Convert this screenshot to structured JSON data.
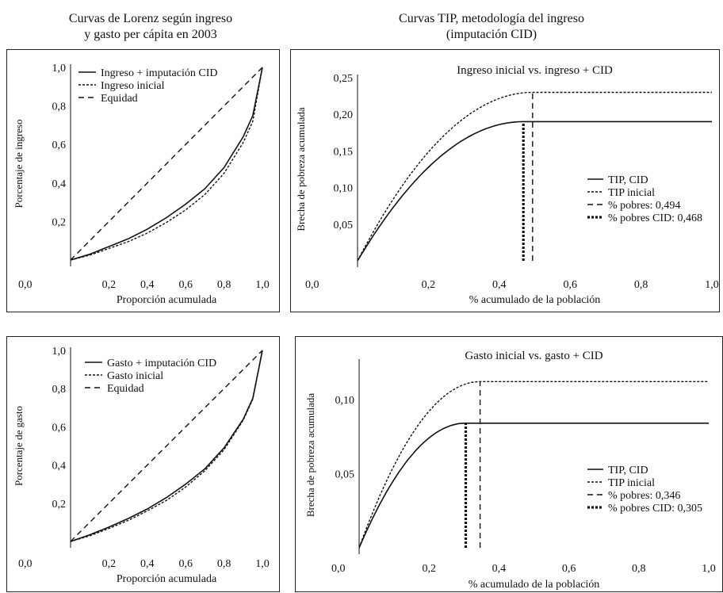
{
  "headers": {
    "left": [
      "Curvas de Lorenz según ingreso",
      "y gasto per cápita en 2003"
    ],
    "right": [
      "Curvas TIP, metodología del ingreso",
      "(imputación CID)"
    ]
  },
  "chart_data": [
    {
      "type": "line",
      "title": "",
      "xlabel": "Proporción acumulada",
      "ylabel": "Porcentaje de ingreso",
      "xlim": [
        0,
        1
      ],
      "ylim": [
        0,
        1
      ],
      "x_ticks": [
        "0,2",
        "0,4",
        "0,6",
        "0,8",
        "1,0"
      ],
      "y_ticks": [
        "0,2",
        "0,4",
        "0,6",
        "0,8",
        "1,0"
      ],
      "origin_label": "0,0",
      "legend_position": "top-left",
      "series": [
        {
          "name": "Ingreso + imputación CID",
          "style": "solid",
          "x": [
            0,
            0.1,
            0.2,
            0.3,
            0.4,
            0.5,
            0.6,
            0.7,
            0.8,
            0.9,
            0.95,
            1.0
          ],
          "y": [
            0,
            0.03,
            0.07,
            0.11,
            0.16,
            0.22,
            0.29,
            0.37,
            0.48,
            0.64,
            0.75,
            1.0
          ]
        },
        {
          "name": "Ingreso inicial",
          "style": "dotted",
          "x": [
            0,
            0.1,
            0.2,
            0.3,
            0.4,
            0.5,
            0.6,
            0.7,
            0.8,
            0.9,
            0.95,
            1.0
          ],
          "y": [
            0,
            0.025,
            0.06,
            0.095,
            0.14,
            0.195,
            0.26,
            0.34,
            0.45,
            0.61,
            0.72,
            1.0
          ]
        },
        {
          "name": "Equidad",
          "style": "dashed",
          "x": [
            0,
            1
          ],
          "y": [
            0,
            1
          ]
        }
      ]
    },
    {
      "type": "line",
      "title": "Ingreso inicial vs. ingreso + CID",
      "xlabel": "% acumulado de la población",
      "ylabel": "Brecha de pobreza acumulada",
      "xlim": [
        0,
        1
      ],
      "ylim": [
        0,
        0.25
      ],
      "x_ticks": [
        "0,2",
        "0,4",
        "0,6",
        "0,8",
        "1,0"
      ],
      "y_ticks": [
        "0,05",
        "0,10",
        "0,15",
        "0,20",
        "0,25"
      ],
      "origin_label": "0,0",
      "legend_position": "right",
      "series": [
        {
          "name": "TIP, CID",
          "style": "solid",
          "kind": "tip",
          "rate": 0.468,
          "plateau": 0.19
        },
        {
          "name": "TIP inicial",
          "style": "dotted",
          "kind": "tip",
          "rate": 0.494,
          "plateau": 0.23
        },
        {
          "name": "% pobres: 0,494",
          "style": "dashed",
          "kind": "vline",
          "x": 0.494
        },
        {
          "name": "% pobres CID: 0,468",
          "style": "dotted-thick",
          "kind": "vline",
          "x": 0.468
        }
      ]
    },
    {
      "type": "line",
      "title": "",
      "xlabel": "Proporción acumulada",
      "ylabel": "Porcentaje de gasto",
      "xlim": [
        0,
        1
      ],
      "ylim": [
        0,
        1
      ],
      "x_ticks": [
        "0,2",
        "0,4",
        "0,6",
        "0,8",
        "1,0"
      ],
      "y_ticks": [
        "0,2",
        "0,4",
        "0,6",
        "0,8",
        "1,0"
      ],
      "origin_label": "0,0",
      "legend_position": "top-left",
      "series": [
        {
          "name": "Gasto + imputación CID",
          "style": "solid",
          "x": [
            0,
            0.1,
            0.2,
            0.3,
            0.4,
            0.5,
            0.6,
            0.7,
            0.8,
            0.9,
            0.95,
            1.0
          ],
          "y": [
            0,
            0.035,
            0.075,
            0.12,
            0.17,
            0.23,
            0.3,
            0.38,
            0.49,
            0.64,
            0.75,
            1.0
          ]
        },
        {
          "name": "Gasto inicial",
          "style": "dotted",
          "x": [
            0,
            0.1,
            0.2,
            0.3,
            0.4,
            0.5,
            0.6,
            0.7,
            0.8,
            0.9,
            0.95,
            1.0
          ],
          "y": [
            0,
            0.03,
            0.068,
            0.11,
            0.16,
            0.215,
            0.285,
            0.37,
            0.48,
            0.635,
            0.745,
            1.0
          ]
        },
        {
          "name": "Equidad",
          "style": "dashed",
          "x": [
            0,
            1
          ],
          "y": [
            0,
            1
          ]
        }
      ]
    },
    {
      "type": "line",
      "title": "Gasto inicial vs. gasto + CID",
      "xlabel": "% acumulado de la población",
      "ylabel": "Brecha de pobreza acumulada",
      "xlim": [
        0,
        1
      ],
      "ylim": [
        0,
        0.125
      ],
      "x_ticks": [
        "0,2",
        "0,4",
        "0,6",
        "0,8",
        "1,0"
      ],
      "y_ticks": [
        "0,05",
        "0,10"
      ],
      "origin_label": "0,0",
      "legend_position": "right",
      "series": [
        {
          "name": "TIP, CID",
          "style": "solid",
          "kind": "tip",
          "rate": 0.305,
          "plateau": 0.084
        },
        {
          "name": "TIP inicial",
          "style": "dotted",
          "kind": "tip",
          "rate": 0.346,
          "plateau": 0.112
        },
        {
          "name": "% pobres: 0,346",
          "style": "dashed",
          "kind": "vline",
          "x": 0.346
        },
        {
          "name": "% pobres CID: 0,305",
          "style": "dotted-thick",
          "kind": "vline",
          "x": 0.305
        }
      ]
    }
  ]
}
